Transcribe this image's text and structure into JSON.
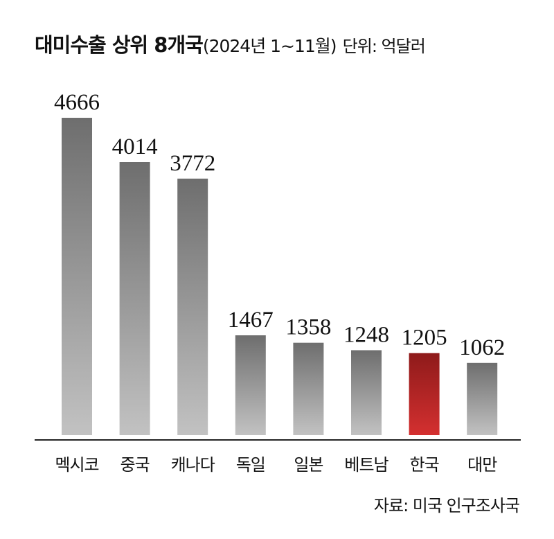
{
  "header": {
    "title": "대미수출 상위 8개국",
    "period": "(2024년 1~11월)",
    "unit": "단위: 억달러"
  },
  "footer": {
    "source": "자료: 미국 인구조사국"
  },
  "colors": {
    "bar_top": "#6e6e6e",
    "bar_bottom": "#c2c2c2",
    "highlight_top": "#8e1a1a",
    "highlight_bottom": "#d43030",
    "axis": "#222222"
  },
  "chart_data": {
    "type": "bar",
    "title": "대미수출 상위 8개국",
    "subtitle": "(2024년 1~11월)",
    "unit": "억달러",
    "categories": [
      "멕시코",
      "중국",
      "캐나다",
      "독일",
      "일본",
      "베트남",
      "한국",
      "대만"
    ],
    "values": [
      4666,
      4014,
      3772,
      1467,
      1358,
      1248,
      1205,
      1062
    ],
    "highlight": "한국",
    "ylim": [
      0,
      4666
    ],
    "grid": false,
    "legend": "none"
  }
}
